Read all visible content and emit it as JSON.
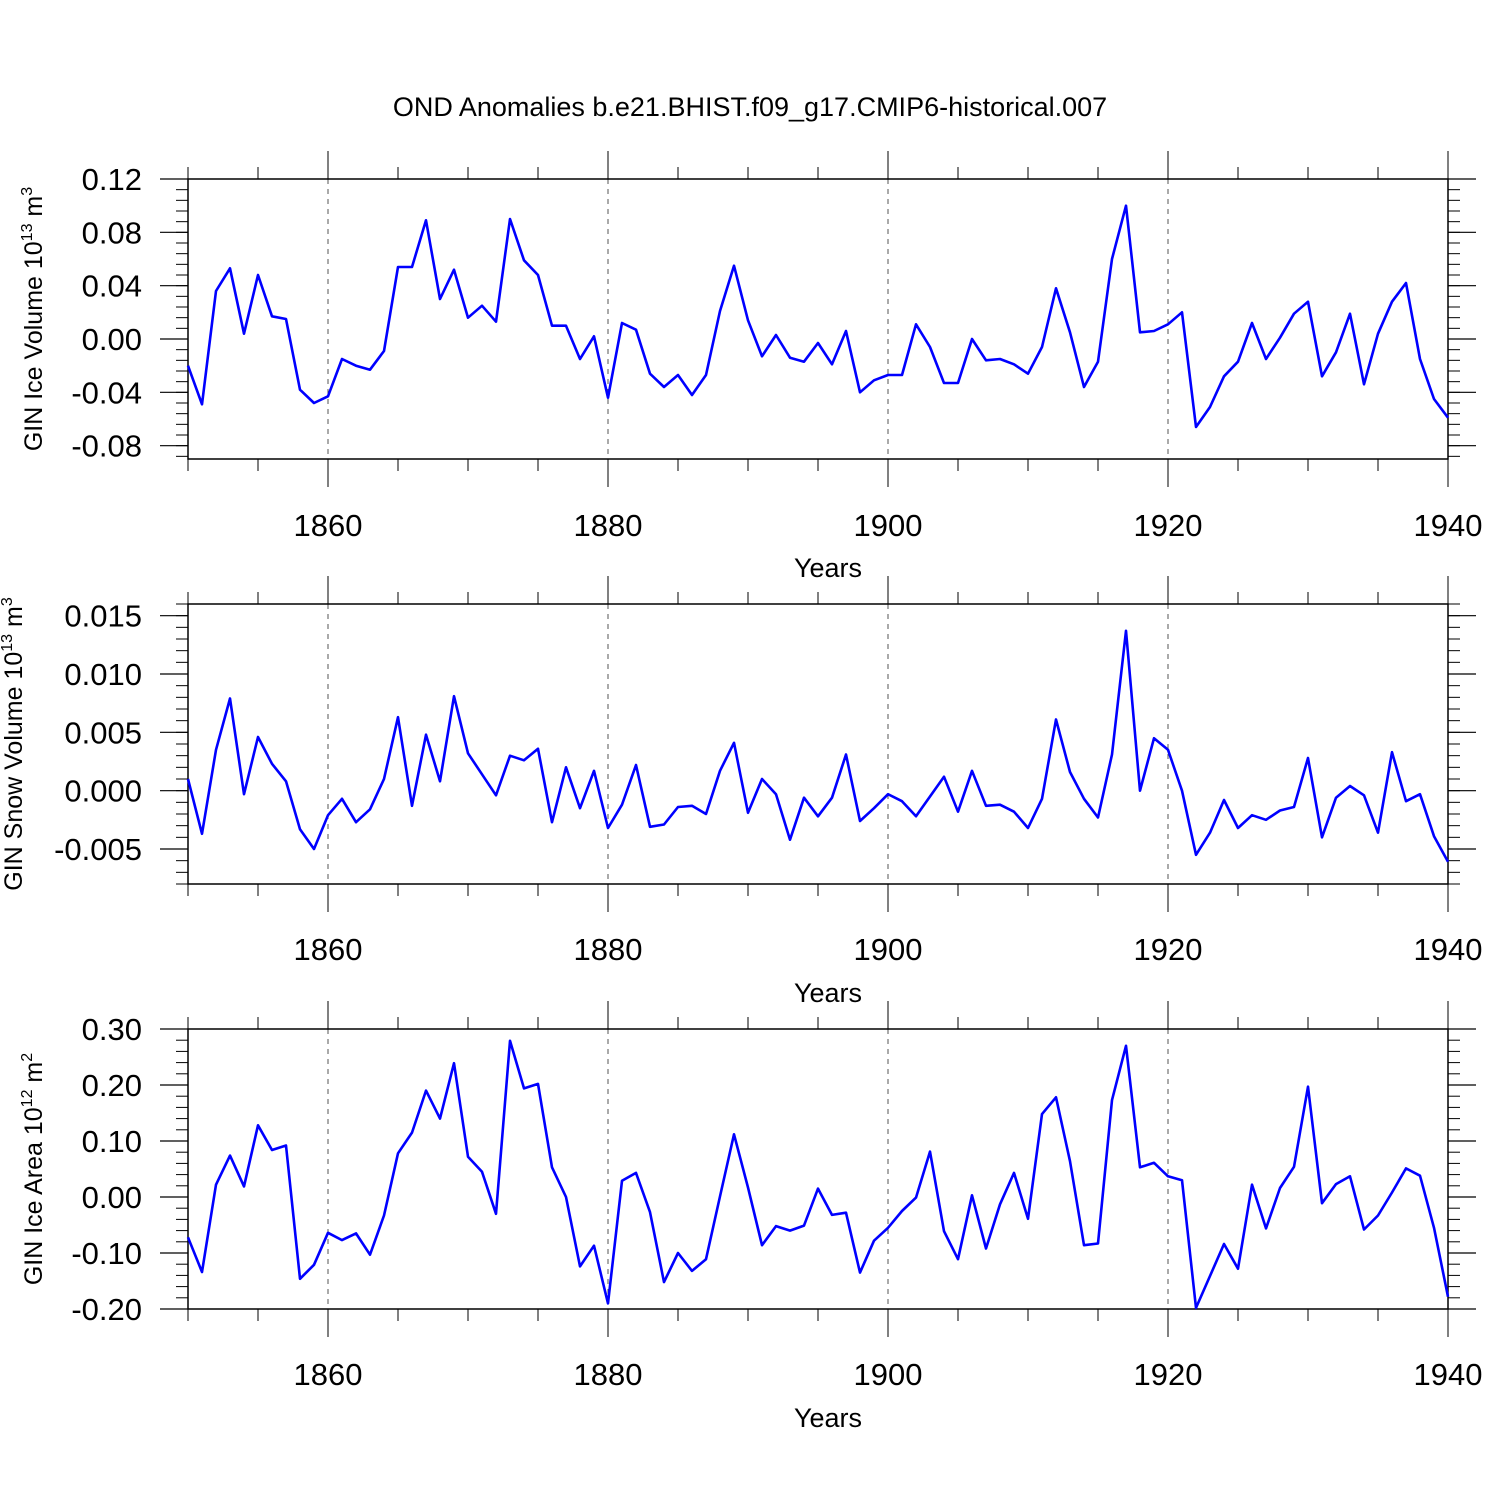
{
  "chart_data": {
    "type": "line",
    "title": "OND Anomalies b.e21.BHIST.f09_g17.CMIP6-historical.007",
    "x_start": 1850,
    "x_end": 1940,
    "line_color": "#0000ff",
    "panels": [
      {
        "id": "ice-volume",
        "ylabel_main": "GIN Ice Volume 10",
        "ylabel_exp": "13",
        "ylabel_unit": " m",
        "ylabel_unit_exp": "3",
        "xlabel": "Years",
        "ylim": [
          -0.09,
          0.12
        ],
        "yticks": [
          -0.08,
          -0.04,
          0.0,
          0.04,
          0.08,
          0.12
        ],
        "ytick_labels": [
          "-0.08",
          "-0.04",
          "0.00",
          "0.04",
          "0.08",
          "0.12"
        ],
        "xticks": [
          1860,
          1880,
          1900,
          1920,
          1940
        ],
        "xtick_labels": [
          "1860",
          "1880",
          "1900",
          "1920",
          "1940"
        ],
        "values": [
          -0.02,
          -0.049,
          0.036,
          0.053,
          0.004,
          0.048,
          0.017,
          0.015,
          -0.038,
          -0.048,
          -0.043,
          -0.015,
          -0.02,
          -0.023,
          -0.009,
          0.054,
          0.054,
          0.089,
          0.03,
          0.052,
          0.016,
          0.025,
          0.013,
          0.09,
          0.059,
          0.048,
          0.01,
          0.01,
          -0.015,
          0.002,
          -0.044,
          0.012,
          0.007,
          -0.026,
          -0.036,
          -0.027,
          -0.042,
          -0.027,
          0.021,
          0.055,
          0.014,
          -0.013,
          0.003,
          -0.014,
          -0.017,
          -0.003,
          -0.019,
          0.006,
          -0.04,
          -0.031,
          -0.027,
          -0.027,
          0.011,
          -0.006,
          -0.033,
          -0.033,
          0.0,
          -0.016,
          -0.015,
          -0.019,
          -0.026,
          -0.006,
          0.038,
          0.005,
          -0.036,
          -0.017,
          0.06,
          0.1,
          0.005,
          0.006,
          0.011,
          0.02,
          -0.066,
          -0.051,
          -0.028,
          -0.017,
          0.012,
          -0.015,
          0.001,
          0.019,
          0.028,
          -0.028,
          -0.01,
          0.019,
          -0.034,
          0.004,
          0.028,
          0.042,
          -0.015,
          -0.045,
          -0.059
        ]
      },
      {
        "id": "snow-volume",
        "ylabel_main": "GIN Snow Volume 10",
        "ylabel_exp": "13",
        "ylabel_unit": " m",
        "ylabel_unit_exp": "3",
        "xlabel": "Years",
        "ylim": [
          -0.008,
          0.016
        ],
        "yticks": [
          -0.005,
          0.0,
          0.005,
          0.01,
          0.015
        ],
        "ytick_labels": [
          "-0.005",
          "0.000",
          "0.005",
          "0.010",
          "0.015"
        ],
        "xticks": [
          1860,
          1880,
          1900,
          1920,
          1940
        ],
        "xtick_labels": [
          "1860",
          "1880",
          "1900",
          "1920",
          "1940"
        ],
        "values": [
          0.001,
          -0.0037,
          0.0035,
          0.0079,
          -0.0003,
          0.0046,
          0.0023,
          0.0008,
          -0.0033,
          -0.005,
          -0.0021,
          -0.0007,
          -0.0027,
          -0.0016,
          0.001,
          0.0063,
          -0.0013,
          0.0048,
          0.0008,
          0.0081,
          0.0032,
          0.0014,
          -0.0004,
          0.003,
          0.0026,
          0.0036,
          -0.0027,
          0.002,
          -0.0015,
          0.0017,
          -0.0032,
          -0.0012,
          0.0022,
          -0.0031,
          -0.0029,
          -0.0014,
          -0.0013,
          -0.002,
          0.0017,
          0.0041,
          -0.0019,
          0.001,
          -0.0003,
          -0.0042,
          -0.0006,
          -0.0022,
          -0.0006,
          0.0031,
          -0.0026,
          -0.0015,
          -0.0003,
          -0.0009,
          -0.0022,
          -0.0005,
          0.0012,
          -0.0018,
          0.0017,
          -0.0013,
          -0.0012,
          -0.0018,
          -0.0032,
          -0.0007,
          0.0061,
          0.0016,
          -0.0007,
          -0.0023,
          0.0031,
          0.0137,
          0.0,
          0.0045,
          0.0035,
          0.0,
          -0.0055,
          -0.0036,
          -0.0008,
          -0.0032,
          -0.0021,
          -0.0025,
          -0.0017,
          -0.0014,
          0.0028,
          -0.004,
          -0.0006,
          0.0004,
          -0.0004,
          -0.0036,
          0.0033,
          -0.0009,
          -0.0003,
          -0.0039,
          -0.0061
        ]
      },
      {
        "id": "ice-area",
        "ylabel_main": "GIN Ice Area 10",
        "ylabel_exp": "12",
        "ylabel_unit": " m",
        "ylabel_unit_exp": "2",
        "xlabel": "Years",
        "ylim": [
          -0.2,
          0.3
        ],
        "yticks": [
          -0.2,
          -0.1,
          0.0,
          0.1,
          0.2,
          0.3
        ],
        "ytick_labels": [
          "-0.20",
          "-0.10",
          "0.00",
          "0.10",
          "0.20",
          "0.30"
        ],
        "xticks": [
          1860,
          1880,
          1900,
          1920,
          1940
        ],
        "xtick_labels": [
          "1860",
          "1880",
          "1900",
          "1920",
          "1940"
        ],
        "values": [
          -0.072,
          -0.134,
          0.022,
          0.074,
          0.019,
          0.128,
          0.084,
          0.092,
          -0.146,
          -0.121,
          -0.064,
          -0.077,
          -0.065,
          -0.103,
          -0.033,
          0.078,
          0.115,
          0.19,
          0.14,
          0.239,
          0.072,
          0.045,
          -0.03,
          0.279,
          0.194,
          0.202,
          0.053,
          0.0,
          -0.124,
          -0.087,
          -0.19,
          0.029,
          0.043,
          -0.027,
          -0.152,
          -0.1,
          -0.132,
          -0.111,
          0.001,
          0.112,
          0.017,
          -0.086,
          -0.052,
          -0.06,
          -0.051,
          0.015,
          -0.032,
          -0.028,
          -0.135,
          -0.078,
          -0.055,
          -0.025,
          -0.001,
          0.081,
          -0.061,
          -0.111,
          0.003,
          -0.092,
          -0.013,
          0.043,
          -0.039,
          0.148,
          0.178,
          0.064,
          -0.086,
          -0.083,
          0.173,
          0.27,
          0.053,
          0.061,
          0.037,
          0.03,
          -0.198,
          -0.141,
          -0.084,
          -0.128,
          0.022,
          -0.056,
          0.016,
          0.054,
          0.197,
          -0.011,
          0.023,
          0.037,
          -0.058,
          -0.033,
          0.008,
          0.051,
          0.038,
          -0.055,
          -0.178
        ]
      }
    ]
  }
}
